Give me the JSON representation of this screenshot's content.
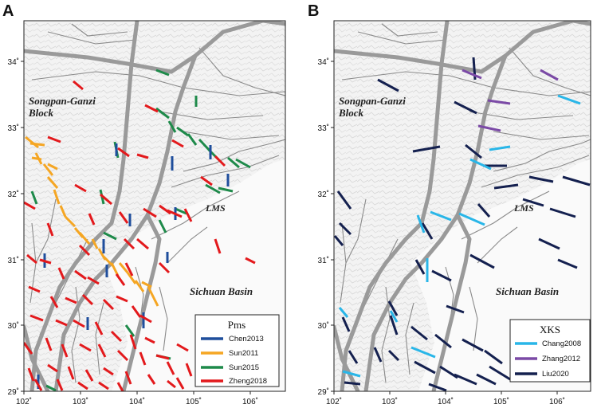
{
  "panels": [
    {
      "letter": "A",
      "lon_labels": [
        "102˚",
        "103˚",
        "104˚",
        "105˚",
        "106˚"
      ],
      "lat_labels": [
        "29˚",
        "30˚",
        "31˚",
        "32˚",
        "33˚",
        "34˚"
      ],
      "regions": {
        "block_line1": "Songpan-Ganzi",
        "block_line2": "Block",
        "lms": "LMS",
        "basin": "Sichuan Basin"
      },
      "legend": {
        "title": "Pms",
        "items": [
          {
            "label": "Chen2013",
            "color": "#1f4e9c"
          },
          {
            "label": "Sun2011",
            "color": "#f5a623"
          },
          {
            "label": "Sun2015",
            "color": "#1e8a4a"
          },
          {
            "label": "Zheng2018",
            "color": "#e3191c"
          }
        ]
      }
    },
    {
      "letter": "B",
      "lon_labels": [
        "102˚",
        "103˚",
        "104˚",
        "105˚",
        "106˚"
      ],
      "lat_labels": [
        "29˚",
        "30˚",
        "31˚",
        "32˚",
        "33˚",
        "34˚"
      ],
      "regions": {
        "block_line1": "Songpan-Ganzi",
        "block_line2": "Block",
        "lms": "LMS",
        "basin": "Sichuan Basin"
      },
      "legend": {
        "title": "XKS",
        "items": [
          {
            "label": "Chang2008",
            "color": "#29b6e8"
          },
          {
            "label": "Zhang2012",
            "color": "#7b4aa6"
          },
          {
            "label": "Liu2020",
            "color": "#14204f"
          }
        ]
      }
    }
  ]
}
